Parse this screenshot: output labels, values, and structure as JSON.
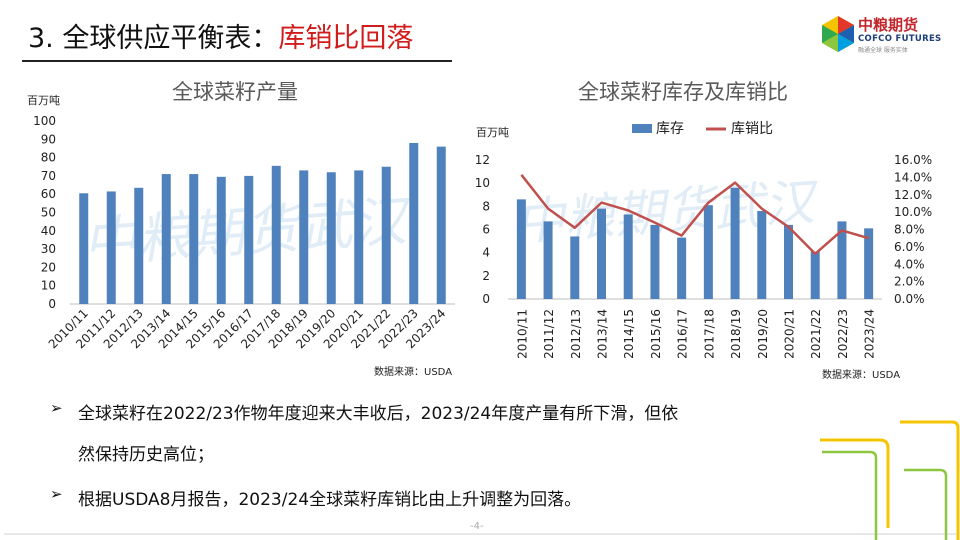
{
  "header": {
    "title_prefix": "3. 全球供应平衡表：",
    "title_highlight": "库销比回落",
    "logo_cn": "中粮期货",
    "logo_en": "COFCO FUTURES",
    "logo_tagline": "融通全球 服务实体",
    "watermark": "中粮期货武汉"
  },
  "chart_data": [
    {
      "type": "bar",
      "title": "全球菜籽产量",
      "ylabel": "百万吨",
      "categories": [
        "2010/11",
        "2011/12",
        "2012/13",
        "2013/14",
        "2014/15",
        "2015/16",
        "2016/17",
        "2017/18",
        "2018/19",
        "2019/20",
        "2020/21",
        "2021/22",
        "2022/23",
        "2023/24"
      ],
      "values": [
        60.5,
        61.5,
        63.5,
        71,
        71,
        69.5,
        70,
        75.5,
        73,
        72,
        73,
        75,
        88,
        86
      ],
      "ylim": [
        0,
        100
      ],
      "yticks": [
        "0",
        "10",
        "20",
        "30",
        "40",
        "50",
        "60",
        "70",
        "80",
        "90",
        "100"
      ],
      "source": "数据来源：USDA",
      "bar_color": "#4f81bd"
    },
    {
      "type": "bar+line",
      "title": "全球菜籽库存及库销比",
      "ylabel": "百万吨",
      "categories": [
        "2010/11",
        "2011/12",
        "2012/13",
        "2013/14",
        "2014/15",
        "2015/16",
        "2016/17",
        "2017/18",
        "2018/19",
        "2019/20",
        "2020/21",
        "2021/22",
        "2022/23",
        "2023/24"
      ],
      "series": [
        {
          "name": "库存",
          "type": "bar",
          "axis": "left",
          "color": "#4f81bd",
          "values": [
            8.6,
            6.7,
            5.4,
            7.8,
            7.3,
            6.4,
            5.3,
            8.1,
            9.6,
            7.6,
            6.4,
            4.1,
            6.7,
            6.1
          ]
        },
        {
          "name": "库销比",
          "type": "line",
          "axis": "right",
          "color": "#c0504d",
          "values": [
            14.3,
            10.4,
            8.2,
            11.1,
            10.2,
            8.8,
            7.3,
            11.1,
            13.4,
            10.4,
            8.3,
            5.2,
            7.9,
            7.0
          ]
        }
      ],
      "ylim_left": [
        0,
        12
      ],
      "yticks_left": [
        "0",
        "2",
        "4",
        "6",
        "8",
        "10",
        "12"
      ],
      "ylim_right": [
        0,
        16
      ],
      "yticks_right": [
        "0.0%",
        "2.0%",
        "4.0%",
        "6.0%",
        "8.0%",
        "10.0%",
        "12.0%",
        "14.0%",
        "16.0%"
      ],
      "legend_position": "top",
      "source": "数据来源：USDA"
    }
  ],
  "bullets": [
    {
      "mark": "➢",
      "lines": [
        "全球菜籽在2022/23作物年度迎来大丰收后，2023/24年度产量有所下滑，但依",
        "然保持历史高位；"
      ]
    },
    {
      "mark": "➢",
      "lines": [
        "根据USDA8月报告，2023/24全球菜籽库销比由上升调整为回落。"
      ]
    }
  ],
  "footer": {
    "page": "-4-"
  },
  "colors": {
    "accent_red": "#d01c1c",
    "bar_blue": "#4f81bd",
    "line_red": "#c0504d",
    "deco_yellow": "#f5c400",
    "deco_green": "#8dc63f"
  }
}
